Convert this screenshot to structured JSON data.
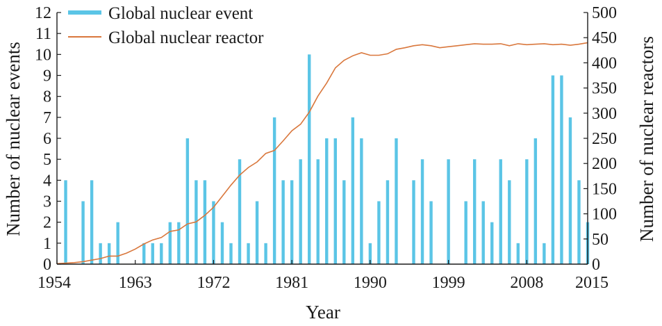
{
  "chart_data": {
    "type": "bar+line",
    "xlabel": "Year",
    "ylabel_left": "Number of nuclear events",
    "ylabel_right": "Number of nuclear reactors",
    "xlim": [
      1954,
      2015
    ],
    "ylim_left": [
      0,
      12
    ],
    "ylim_right": [
      0,
      500
    ],
    "x_ticks": [
      "1954",
      "1963",
      "1972",
      "1981",
      "1990",
      "1999",
      "2008",
      "2015"
    ],
    "y_left_ticks": [
      "0",
      "1",
      "2",
      "3",
      "4",
      "5",
      "6",
      "7",
      "8",
      "9",
      "10",
      "11",
      "12"
    ],
    "y_right_ticks": [
      "0",
      "50",
      "100",
      "150",
      "200",
      "250",
      "300",
      "350",
      "400",
      "450",
      "500"
    ],
    "legend_placement": "top-left",
    "grid": false,
    "series": [
      {
        "name": "Global nuclear event",
        "type": "bar",
        "axis": "left",
        "color": "#5bc5e6",
        "x": [
          1955,
          1957,
          1958,
          1959,
          1960,
          1961,
          1964,
          1965,
          1966,
          1967,
          1968,
          1969,
          1970,
          1971,
          1972,
          1973,
          1974,
          1975,
          1976,
          1977,
          1978,
          1979,
          1980,
          1981,
          1982,
          1983,
          1984,
          1985,
          1986,
          1987,
          1988,
          1989,
          1990,
          1991,
          1992,
          1993,
          1995,
          1996,
          1997,
          1999,
          2001,
          2002,
          2003,
          2004,
          2005,
          2006,
          2007,
          2008,
          2009,
          2010,
          2011,
          2012,
          2013,
          2014,
          2015
        ],
        "values": [
          4,
          3,
          4,
          1,
          1,
          2,
          1,
          1,
          1,
          2,
          2,
          6,
          4,
          4,
          3,
          2,
          1,
          5,
          1,
          3,
          1,
          7,
          4,
          4,
          5,
          10,
          5,
          6,
          6,
          4,
          7,
          6,
          1,
          3,
          4,
          6,
          4,
          5,
          3,
          5,
          3,
          5,
          3,
          2,
          5,
          4,
          1,
          5,
          6,
          1,
          9,
          9,
          7,
          4,
          2
        ]
      },
      {
        "name": "Global nuclear reactor",
        "type": "line",
        "axis": "right",
        "color": "#d9773c",
        "x": [
          1954,
          1955,
          1956,
          1957,
          1958,
          1959,
          1960,
          1961,
          1962,
          1963,
          1964,
          1965,
          1966,
          1967,
          1968,
          1969,
          1970,
          1971,
          1972,
          1973,
          1974,
          1975,
          1976,
          1977,
          1978,
          1979,
          1980,
          1981,
          1982,
          1983,
          1984,
          1985,
          1986,
          1987,
          1988,
          1989,
          1990,
          1991,
          1992,
          1993,
          1994,
          1995,
          1996,
          1997,
          1998,
          1999,
          2000,
          2001,
          2002,
          2003,
          2004,
          2005,
          2006,
          2007,
          2008,
          2009,
          2010,
          2011,
          2012,
          2013,
          2014,
          2015
        ],
        "values": [
          1,
          2,
          3,
          5,
          8,
          11,
          16,
          16,
          22,
          30,
          40,
          48,
          53,
          65,
          68,
          80,
          84,
          97,
          113,
          135,
          157,
          177,
          192,
          203,
          220,
          226,
          245,
          265,
          278,
          302,
          334,
          360,
          390,
          405,
          414,
          420,
          415,
          415,
          418,
          427,
          430,
          434,
          436,
          434,
          430,
          432,
          434,
          436,
          438,
          437,
          437,
          438,
          434,
          438,
          436,
          437,
          438,
          436,
          437,
          435,
          437,
          440
        ]
      }
    ]
  }
}
